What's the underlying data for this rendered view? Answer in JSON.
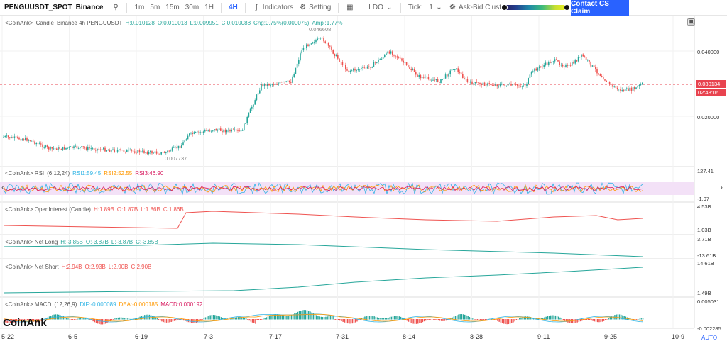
{
  "toolbar": {
    "symbol": "PENGUUSDT_SPOT",
    "exchange": "Binance",
    "timeframes": [
      "1m",
      "5m",
      "15m",
      "30m",
      "1H",
      "4H"
    ],
    "active_timeframe": "4H",
    "indicators_label": "Indicators",
    "setting_label": "Setting",
    "token_select": "LDO",
    "tick_label": "Tick:",
    "tick_value": "1",
    "cluster_label": "Ask-Bid Cluster",
    "contact_label": "Contact CS Claim"
  },
  "main_pane": {
    "legend_prefix": "<CoinAnk>",
    "legend_name": "Candle",
    "legend_source": "Binance 4h PENGUUSDT",
    "legend_ohlc": "H:0.010128",
    "legend_o": "O:0.010013",
    "legend_l": "L:0.009951",
    "legend_c": "C:0.010088",
    "legend_chg": "Chg:0.75%(0.000075)",
    "legend_ampl": "Ampl:1.77%",
    "high_annotation": "0.046608",
    "low_annotation": "0.007737",
    "scale": [
      "0.040000",
      "0.020000"
    ],
    "last_price": "0.030134",
    "countdown": "02:48:06"
  },
  "rsi_pane": {
    "label": "<CoinAnk> RSI",
    "params": "(6,12,24)",
    "rsi1": "RSI1:59.45",
    "rsi2": "RSI2:52.55",
    "rsi3": "RSI3:46.90",
    "scale_top": "127.41",
    "scale_bottom": "-1.97"
  },
  "oi_pane": {
    "label": "<CoinAnk> OpenInterest (Candle)",
    "h": "H:1.89B",
    "o": "O:1.87B",
    "l": "L:1.86B",
    "c": "C:1.86B",
    "scale_top": "4.53B",
    "scale_bottom": "1.03B"
  },
  "netlong_pane": {
    "label": "<CoinAnk> Net Long",
    "h": "H:-3.85B",
    "o": "O:-3.87B",
    "l": "L:-3.87B",
    "c": "C:-3.85B",
    "scale_top": "3.71B",
    "scale_bottom": "-13.61B"
  },
  "netshort_pane": {
    "label": "<CoinAnk> Net Short",
    "h": "H:2.94B",
    "o": "O:2.93B",
    "l": "L:2.90B",
    "c": "C:2.90B",
    "scale_top": "14.61B",
    "scale_bottom": "1.49B"
  },
  "macd_pane": {
    "label": "<CoinAnk> MACD",
    "params": "(12,26,9)",
    "dif": "DIF:-0.000089",
    "dea": "DEA:-0.000185",
    "macd": "MACD:0.000192",
    "scale_top": "0.005031",
    "scale_bottom": "-0.002285"
  },
  "dates": [
    "5-22",
    "6-5",
    "6-19",
    "7-3",
    "7-17",
    "7-31",
    "8-14",
    "8-28",
    "9-11",
    "9-25",
    "10-9"
  ],
  "logo": "CoinAnk",
  "auto_label": "AUTO",
  "colors": {
    "up": "#26a69a",
    "down": "#ef5350",
    "accent": "#2962ff",
    "rsi1": "#33b5e5",
    "rsi2": "#ff9800",
    "rsi3": "#d81b60",
    "macd_dif": "#33b5e5",
    "macd_dea": "#ff9800"
  }
}
